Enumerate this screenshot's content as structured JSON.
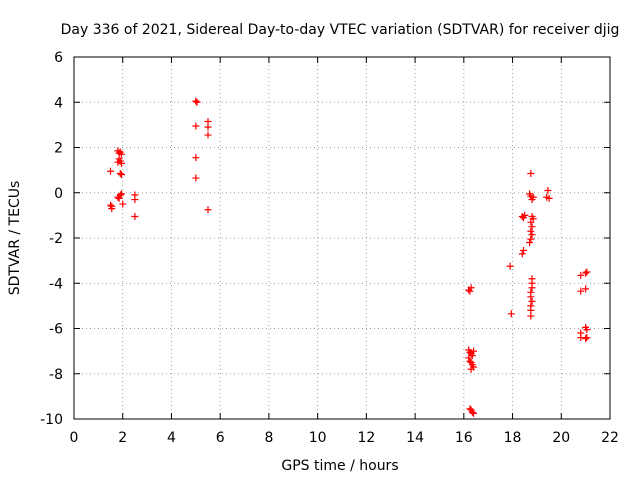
{
  "chart_data": {
    "type": "scatter",
    "title": "Day 336 of 2021, Sidereal Day-to-day VTEC variation (SDTVAR) for receiver djig",
    "xlabel": "GPS time / hours",
    "ylabel": "SDTVAR / TECUs",
    "xlim": [
      0,
      22
    ],
    "ylim": [
      -10,
      6
    ],
    "xticks": [
      0,
      2,
      4,
      6,
      8,
      10,
      12,
      14,
      16,
      18,
      20,
      22
    ],
    "yticks": [
      -10,
      -8,
      -6,
      -4,
      -2,
      0,
      2,
      4,
      6
    ],
    "grid": true,
    "marker": "plus",
    "series": [
      {
        "name": "SDTVAR",
        "color": "#ff0000",
        "points": [
          [
            1.5,
            0.95
          ],
          [
            1.5,
            -0.55
          ],
          [
            1.55,
            -0.7
          ],
          [
            1.55,
            -0.6
          ],
          [
            1.8,
            1.85
          ],
          [
            1.85,
            1.75
          ],
          [
            1.9,
            1.8
          ],
          [
            1.95,
            1.7
          ],
          [
            1.85,
            1.5
          ],
          [
            1.9,
            1.4
          ],
          [
            1.95,
            1.3
          ],
          [
            1.8,
            1.35
          ],
          [
            1.9,
            0.85
          ],
          [
            1.95,
            0.8
          ],
          [
            1.8,
            -0.2
          ],
          [
            1.85,
            -0.25
          ],
          [
            1.9,
            -0.1
          ],
          [
            1.95,
            -0.05
          ],
          [
            2.0,
            -0.5
          ],
          [
            2.5,
            -0.1
          ],
          [
            2.5,
            -0.3
          ],
          [
            2.5,
            -1.05
          ],
          [
            5.0,
            4.05
          ],
          [
            5.05,
            4.0
          ],
          [
            5.0,
            2.95
          ],
          [
            5.0,
            1.55
          ],
          [
            5.0,
            0.65
          ],
          [
            5.5,
            3.15
          ],
          [
            5.5,
            2.9
          ],
          [
            5.5,
            2.55
          ],
          [
            5.5,
            -0.75
          ],
          [
            16.2,
            -4.3
          ],
          [
            16.25,
            -4.35
          ],
          [
            16.3,
            -4.2
          ],
          [
            16.2,
            -6.95
          ],
          [
            16.25,
            -7.05
          ],
          [
            16.3,
            -7.1
          ],
          [
            16.35,
            -7.2
          ],
          [
            16.4,
            -7.0
          ],
          [
            16.2,
            -7.3
          ],
          [
            16.25,
            -7.45
          ],
          [
            16.3,
            -7.5
          ],
          [
            16.35,
            -7.6
          ],
          [
            16.4,
            -7.7
          ],
          [
            16.3,
            -7.8
          ],
          [
            16.25,
            -9.55
          ],
          [
            16.3,
            -9.6
          ],
          [
            16.35,
            -9.7
          ],
          [
            16.4,
            -9.75
          ],
          [
            17.9,
            -3.25
          ],
          [
            17.95,
            -5.35
          ],
          [
            18.4,
            -1.05
          ],
          [
            18.45,
            -1.1
          ],
          [
            18.5,
            -1.0
          ],
          [
            18.45,
            -2.55
          ],
          [
            18.4,
            -2.7
          ],
          [
            18.75,
            0.85
          ],
          [
            18.7,
            -0.05
          ],
          [
            18.75,
            -0.15
          ],
          [
            18.8,
            -0.3
          ],
          [
            18.85,
            -0.2
          ],
          [
            18.8,
            -1.05
          ],
          [
            18.85,
            -1.15
          ],
          [
            18.75,
            -1.3
          ],
          [
            18.8,
            -1.5
          ],
          [
            18.75,
            -1.7
          ],
          [
            18.8,
            -1.85
          ],
          [
            18.75,
            -2.05
          ],
          [
            18.7,
            -2.2
          ],
          [
            18.8,
            -3.8
          ],
          [
            18.8,
            -4.0
          ],
          [
            18.8,
            -4.2
          ],
          [
            18.75,
            -4.4
          ],
          [
            18.75,
            -4.6
          ],
          [
            18.8,
            -4.8
          ],
          [
            18.75,
            -5.0
          ],
          [
            18.75,
            -5.2
          ],
          [
            18.75,
            -5.45
          ],
          [
            19.45,
            0.1
          ],
          [
            19.4,
            -0.2
          ],
          [
            19.5,
            -0.25
          ],
          [
            20.8,
            -3.65
          ],
          [
            20.8,
            -4.35
          ],
          [
            20.8,
            -6.2
          ],
          [
            20.8,
            -6.4
          ],
          [
            21.0,
            -3.55
          ],
          [
            21.05,
            -3.5
          ],
          [
            21.0,
            -4.25
          ],
          [
            21.0,
            -5.95
          ],
          [
            21.05,
            -6.05
          ],
          [
            21.0,
            -6.45
          ],
          [
            21.05,
            -6.4
          ]
        ]
      }
    ]
  }
}
